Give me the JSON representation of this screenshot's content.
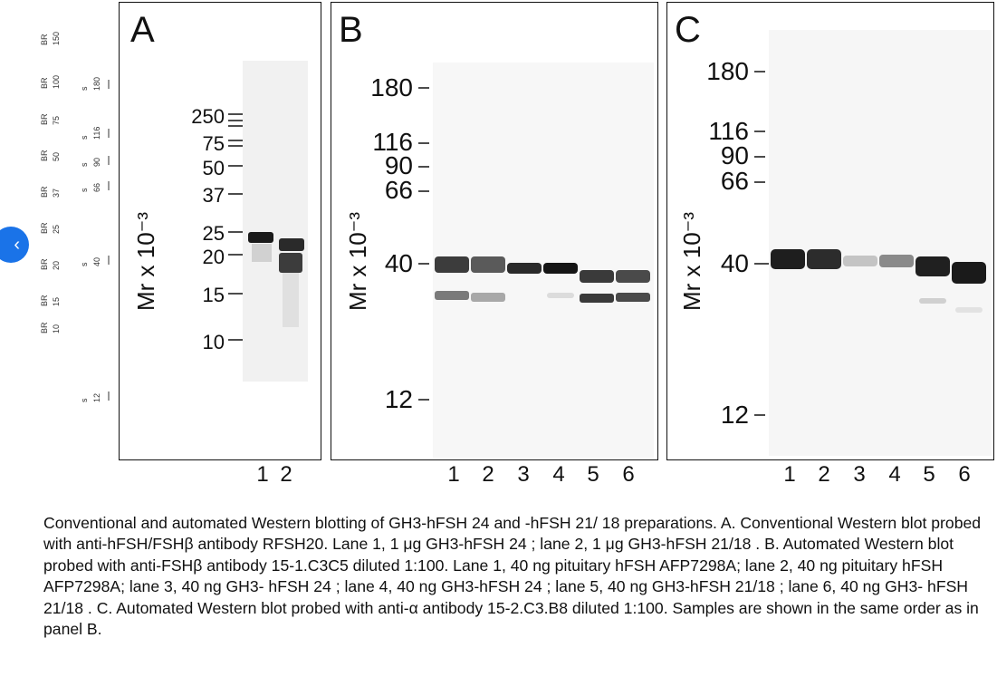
{
  "nav": {
    "back_glyph": "‹"
  },
  "left_strip": {
    "top_labels": [
      "150",
      "100",
      "75",
      "50",
      "37",
      "25",
      "20",
      "15",
      "10"
    ],
    "br_label": "BR",
    "right_labels": [
      "180",
      "116",
      "90",
      "66",
      "40",
      "12"
    ],
    "s_label": "s"
  },
  "panels": [
    {
      "letter": "A",
      "ylabel": "Mr x 10⁻³",
      "markers": [
        "250",
        "75",
        "50",
        "37",
        "25",
        "20",
        "15",
        "10"
      ],
      "lanes": [
        "1",
        "2"
      ]
    },
    {
      "letter": "B",
      "ylabel": "Mr x 10⁻³",
      "markers": [
        "180",
        "116",
        "90",
        "66",
        "40",
        "12"
      ],
      "lanes": [
        "1",
        "2",
        "3",
        "4",
        "5",
        "6"
      ]
    },
    {
      "letter": "C",
      "ylabel": "Mr x 10⁻³",
      "markers": [
        "180",
        "116",
        "90",
        "66",
        "40",
        "12"
      ],
      "lanes": [
        "1",
        "2",
        "3",
        "4",
        "5",
        "6"
      ]
    }
  ],
  "caption": "Conventional and automated Western blotting of GH3-hFSH 24 and -hFSH 21/ 18 preparations. A. Conventional Western blot probed with anti-hFSH/FSHβ antibody RFSH20. Lane 1, 1 μg GH3-hFSH 24 ; lane 2, 1 μg GH3-hFSH 21/18 . B. Automated Western blot probed with anti-FSHβ antibody 15-1.C3C5 diluted 1:100. Lane 1, 40 ng pituitary hFSH AFP7298A; lane 2, 40 ng pituitary hFSH AFP7298A; lane 3, 40 ng GH3- hFSH 24 ; lane 4, 40 ng GH3-hFSH 24 ; lane 5, 40 ng GH3-hFSH 21/18 ; lane 6, 40 ng GH3- hFSH 21/18 . C. Automated Western blot probed with anti-α antibody 15-2.C3.B8 diluted 1:100. Samples are shown in the same order as in panel B."
}
